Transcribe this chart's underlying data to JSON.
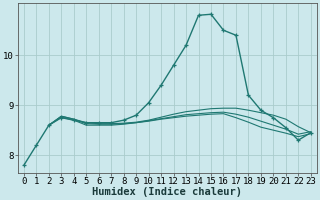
{
  "xlabel": "Humidex (Indice chaleur)",
  "ylabel": "",
  "xlim": [
    -0.5,
    23.5
  ],
  "ylim": [
    7.65,
    11.05
  ],
  "bg_color": "#cce8ec",
  "grid_color": "#aacccc",
  "line_color": "#1f7872",
  "lines": [
    {
      "x": [
        0,
        1,
        2,
        3,
        4,
        5,
        6,
        7,
        8,
        9,
        10,
        11,
        12,
        13,
        14,
        15,
        16,
        17,
        18,
        19,
        20,
        21,
        22,
        23
      ],
      "y": [
        7.8,
        8.2,
        8.6,
        8.75,
        8.7,
        8.65,
        8.65,
        8.65,
        8.7,
        8.8,
        9.05,
        9.4,
        9.8,
        10.2,
        10.8,
        10.82,
        10.5,
        10.4,
        9.2,
        8.9,
        8.75,
        8.55,
        8.3,
        8.45
      ],
      "marker": true,
      "lw": 1.0
    },
    {
      "x": [
        2,
        3,
        4,
        5,
        6,
        7,
        8,
        9,
        10,
        11,
        12,
        13,
        14,
        15,
        16,
        17,
        18,
        19,
        20,
        21,
        22,
        23
      ],
      "y": [
        8.6,
        8.78,
        8.72,
        8.65,
        8.63,
        8.63,
        8.64,
        8.66,
        8.7,
        8.76,
        8.82,
        8.87,
        8.9,
        8.93,
        8.94,
        8.94,
        8.9,
        8.85,
        8.8,
        8.72,
        8.57,
        8.45
      ],
      "marker": false,
      "lw": 0.8
    },
    {
      "x": [
        2,
        3,
        4,
        5,
        6,
        7,
        8,
        9,
        10,
        11,
        12,
        13,
        14,
        15,
        16,
        17,
        18,
        19,
        20,
        21,
        22,
        23
      ],
      "y": [
        8.6,
        8.78,
        8.72,
        8.63,
        8.62,
        8.62,
        8.63,
        8.65,
        8.69,
        8.73,
        8.77,
        8.81,
        8.83,
        8.85,
        8.86,
        8.82,
        8.76,
        8.68,
        8.6,
        8.52,
        8.42,
        8.47
      ],
      "marker": false,
      "lw": 0.8
    },
    {
      "x": [
        2,
        3,
        4,
        5,
        6,
        7,
        8,
        9,
        10,
        11,
        12,
        13,
        14,
        15,
        16,
        17,
        18,
        19,
        20,
        21,
        22,
        23
      ],
      "y": [
        8.6,
        8.76,
        8.7,
        8.6,
        8.6,
        8.6,
        8.62,
        8.65,
        8.68,
        8.72,
        8.75,
        8.78,
        8.8,
        8.82,
        8.83,
        8.75,
        8.66,
        8.56,
        8.5,
        8.44,
        8.37,
        8.43
      ],
      "marker": false,
      "lw": 0.8
    }
  ],
  "xticks": [
    0,
    1,
    2,
    3,
    4,
    5,
    6,
    7,
    8,
    9,
    10,
    11,
    12,
    13,
    14,
    15,
    16,
    17,
    18,
    19,
    20,
    21,
    22,
    23
  ],
  "yticks": [
    8,
    9,
    10
  ],
  "tick_fontsize": 6.5,
  "xlabel_fontsize": 7.5
}
